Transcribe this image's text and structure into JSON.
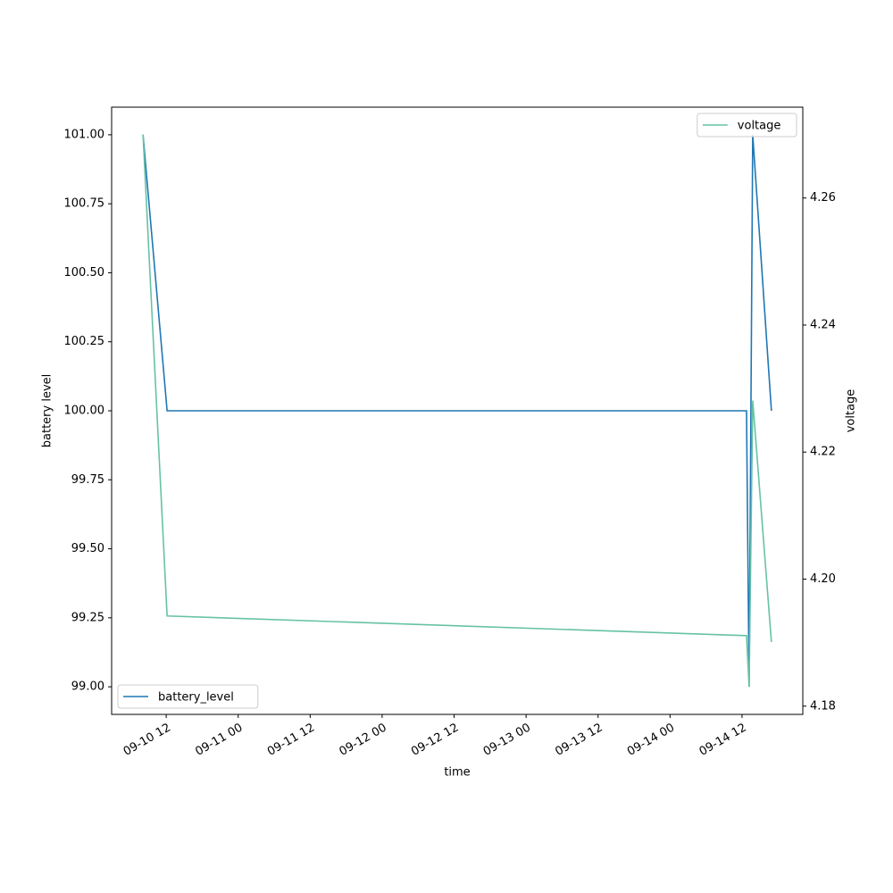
{
  "chart_data": {
    "type": "line",
    "xlabel": "time",
    "ylabel": "battery level",
    "y2label": "voltage",
    "x": [
      "09-10 08:08",
      "09-10 12:09",
      "09-14 12:45",
      "09-14 13:11",
      "09-14 13:47",
      "09-14 16:54"
    ],
    "series": [
      {
        "name": "battery_level",
        "color": "#1f77b4",
        "values": [
          101,
          100,
          100,
          99,
          101,
          100
        ],
        "legend": "lower left"
      },
      {
        "name": "voltage",
        "color": "#66c2a5",
        "axis": "y2",
        "values": [
          4.27,
          4.1942,
          4.1911,
          4.1831,
          4.2281,
          4.1901
        ],
        "legend": "upper right"
      }
    ],
    "xlim": [
      "09-10 02:54",
      "09-14 22:08"
    ],
    "xticks": [
      "09-10 12",
      "09-11 00",
      "09-11 12",
      "09-12 00",
      "09-12 12",
      "09-13 00",
      "09-13 12",
      "09-14 00",
      "09-14 12"
    ],
    "ylim": [
      98.9,
      101.1
    ],
    "yticks": [
      {
        "value": 99,
        "label": "99.00"
      },
      {
        "value": 99.25,
        "label": "99.25"
      },
      {
        "value": 99.5,
        "label": "99.50"
      },
      {
        "value": 99.75,
        "label": "99.75"
      },
      {
        "value": 100,
        "label": "100.00"
      },
      {
        "value": 100.25,
        "label": "100.25"
      },
      {
        "value": 100.5,
        "label": "100.50"
      },
      {
        "value": 100.75,
        "label": "100.75"
      },
      {
        "value": 101,
        "label": "101.00"
      }
    ],
    "y2lim": [
      4.1787,
      4.2743
    ],
    "y2ticks": [
      4.18,
      {
        "value": 4.2,
        "label": "4.20"
      },
      4.22,
      4.24,
      4.26
    ],
    "grid": false
  }
}
